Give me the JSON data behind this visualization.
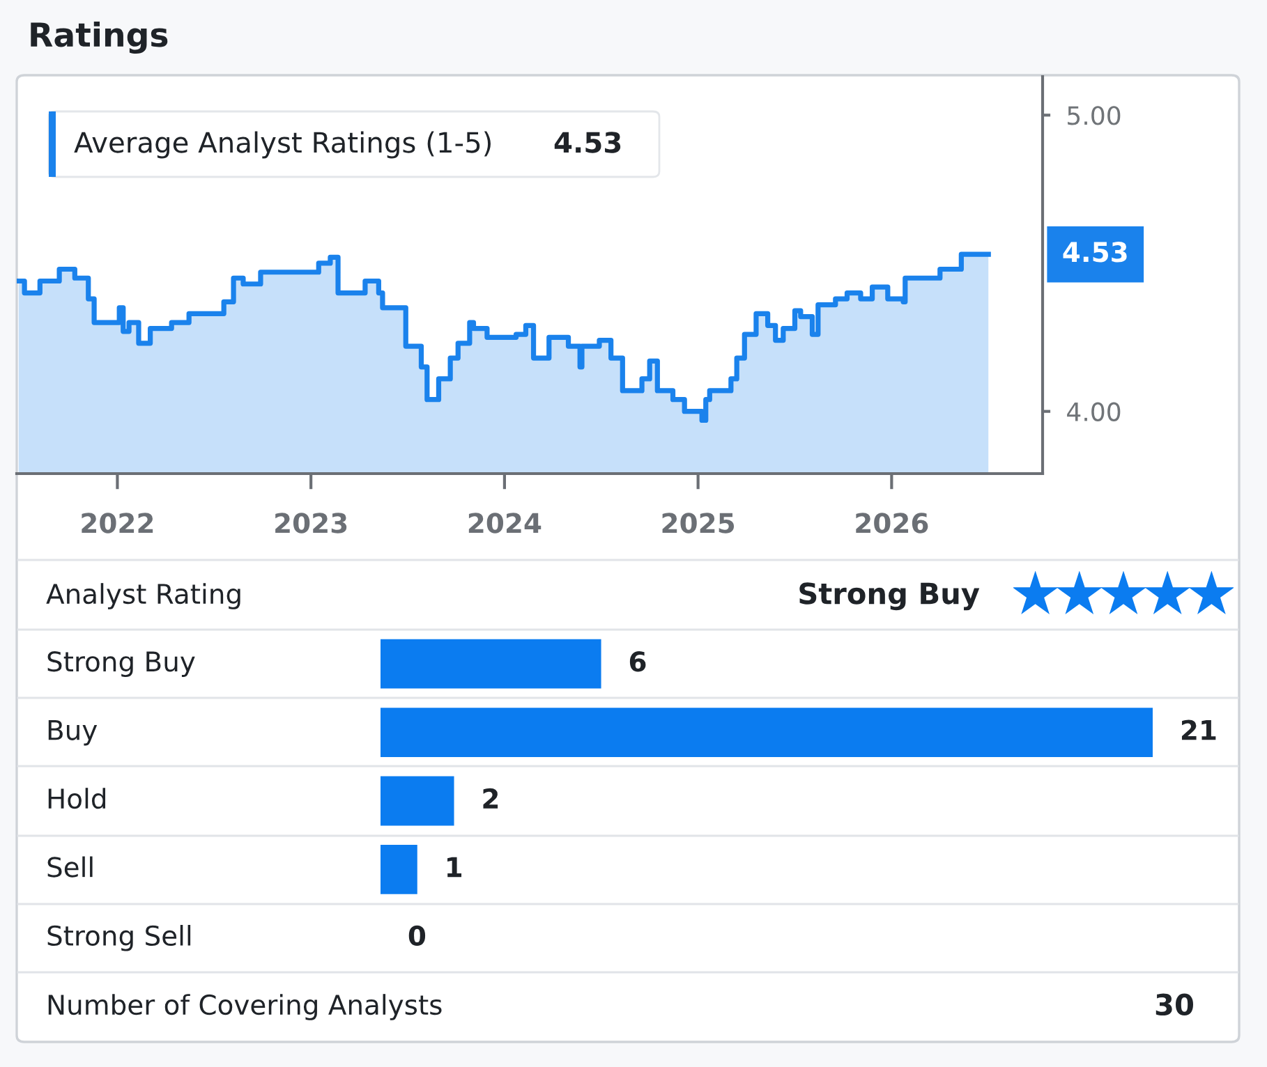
{
  "chart_data": [
    {
      "type": "step",
      "title": "Ratings",
      "subtitle": "Average Analyst Ratings (1-5)",
      "x": [
        2021.49,
        2021.52,
        2021.6,
        2021.7,
        2021.78,
        2021.85,
        2021.88,
        2022.01,
        2022.03,
        2022.06,
        2022.11,
        2022.17,
        2022.28,
        2022.37,
        2022.55,
        2022.6,
        2022.65,
        2022.74,
        2023.04,
        2023.1,
        2023.14,
        2023.28,
        2023.35,
        2023.37,
        2023.49,
        2023.57,
        2023.6,
        2023.66,
        2023.72,
        2023.76,
        2023.82,
        2023.84,
        2023.91,
        2024.06,
        2024.11,
        2024.15,
        2024.23,
        2024.33,
        2024.39,
        2024.4,
        2024.49,
        2024.55,
        2024.61,
        2024.71,
        2024.75,
        2024.79,
        2024.87,
        2024.93,
        2025.02,
        2025.04,
        2025.06,
        2025.17,
        2025.2,
        2025.24,
        2025.3,
        2025.36,
        2025.4,
        2025.44,
        2025.5,
        2025.53,
        2025.59,
        2025.62,
        2025.71,
        2025.77,
        2025.84,
        2025.9,
        2025.98,
        2026.06,
        2026.07,
        2026.14,
        2026.25,
        2026.36,
        2026.5
      ],
      "series": [
        {
          "color": "#1a82ec",
          "values": [
            4.44,
            4.4,
            4.44,
            4.48,
            4.45,
            4.38,
            4.3,
            4.35,
            4.27,
            4.3,
            4.23,
            4.28,
            4.3,
            4.33,
            4.37,
            4.45,
            4.43,
            4.47,
            4.5,
            4.52,
            4.4,
            4.44,
            4.4,
            4.35,
            4.22,
            4.15,
            4.04,
            4.11,
            4.18,
            4.23,
            4.3,
            4.28,
            4.25,
            4.26,
            4.29,
            4.18,
            4.25,
            4.22,
            4.15,
            4.22,
            4.24,
            4.18,
            4.07,
            4.11,
            4.17,
            4.07,
            4.04,
            4.0,
            3.97,
            4.04,
            4.07,
            4.11,
            4.18,
            4.26,
            4.33,
            4.29,
            4.24,
            4.28,
            4.34,
            4.32,
            4.26,
            4.36,
            4.38,
            4.4,
            4.38,
            4.42,
            4.38,
            4.37,
            4.45,
            4.45,
            4.48,
            4.53,
            4.53
          ]
        }
      ],
      "xlim": [
        2021.48,
        2026.78
      ],
      "ylim": [
        3.79,
        5.13
      ],
      "xticks": [
        2022,
        2023,
        2024,
        2025,
        2026
      ],
      "yticks": [
        {
          "value": 4,
          "label": "4.00"
        },
        {
          "value": 5,
          "label": "5.00"
        }
      ],
      "annotations": [
        "4.53",
        {
          "text": "4.53",
          "x": 2026.5,
          "y": 4.53
        }
      ]
    },
    {
      "type": "bar",
      "orientation": "horizontal",
      "data_labels": true,
      "categories": [
        "Strong Buy",
        "Buy",
        "Hold",
        "Sell",
        "Strong Sell"
      ],
      "values": [
        6,
        21,
        2,
        1,
        0
      ],
      "color": "#0b7cf0",
      "annotations": [
        "Analyst Rating",
        "Strong Buy",
        "Number of Covering Analysts",
        "30"
      ]
    }
  ]
}
